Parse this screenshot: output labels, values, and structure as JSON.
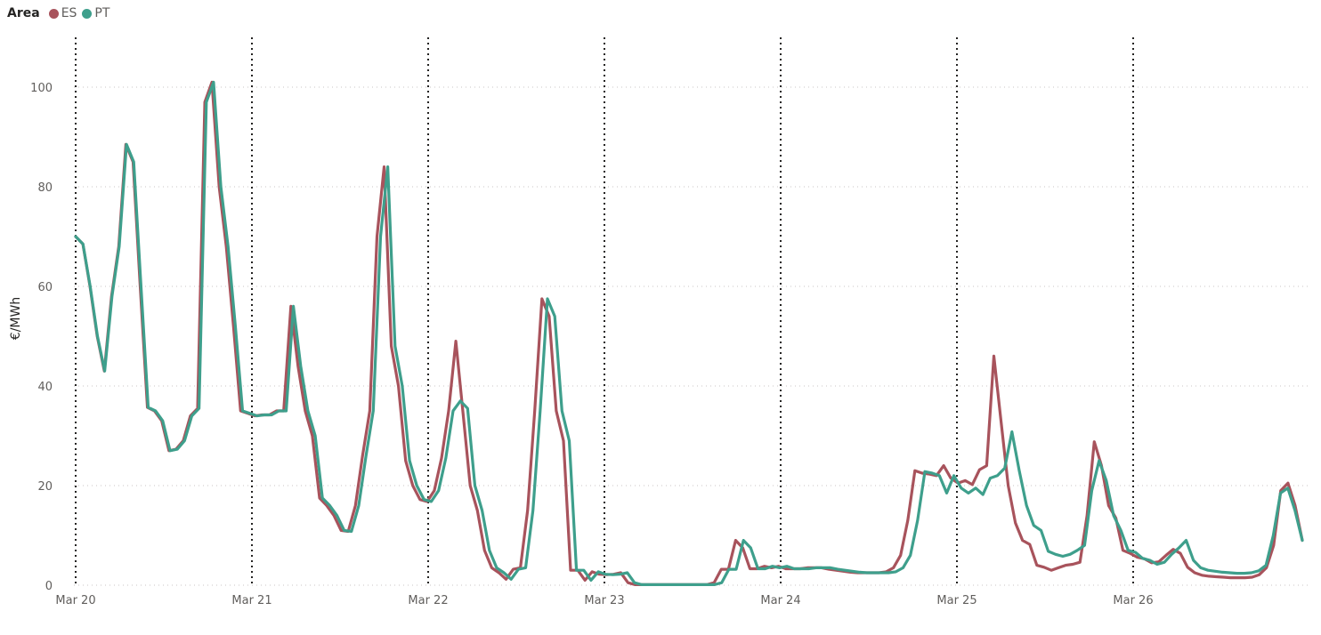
{
  "legend": {
    "title": "Area",
    "items": [
      {
        "label": "ES",
        "color": "#a8535c"
      },
      {
        "label": "PT",
        "color": "#3e9f8c"
      }
    ]
  },
  "chart_data": {
    "type": "line",
    "ylabel": "€/MWh",
    "ylim": [
      0,
      110
    ],
    "yticks": [
      0,
      20,
      40,
      60,
      80,
      100
    ],
    "xlim": [
      0,
      7
    ],
    "xticks": [
      {
        "pos": 0,
        "label": "Mar 20"
      },
      {
        "pos": 1,
        "label": "Mar 21"
      },
      {
        "pos": 2,
        "label": "Mar 22"
      },
      {
        "pos": 3,
        "label": "Mar 23"
      },
      {
        "pos": 4,
        "label": "Mar 24"
      },
      {
        "pos": 5,
        "label": "Mar 25"
      },
      {
        "pos": 6,
        "label": "Mar 26"
      }
    ],
    "grid": true,
    "legend_position": "top-left",
    "series": [
      {
        "name": "ES",
        "color": "#a8535c",
        "values": [
          70,
          68.5,
          60,
          50,
          43,
          58,
          68,
          88.5,
          85,
          60,
          35.7,
          35,
          33,
          27,
          27.3,
          29,
          34,
          35.5,
          97,
          101,
          80,
          68,
          52,
          35,
          34.5,
          34,
          34.2,
          34.2,
          35,
          35,
          56,
          44,
          35,
          30,
          17.5,
          16,
          14,
          11,
          10.8,
          16,
          26,
          35,
          70,
          84,
          48,
          40,
          25,
          20,
          17.2,
          16.8,
          19,
          25.5,
          35,
          49,
          34.5,
          20,
          15,
          7,
          3.5,
          2.5,
          1.2,
          3.2,
          3.5,
          15,
          35,
          57.5,
          54,
          35,
          29,
          3,
          3,
          1,
          2.7,
          2.2,
          2.1,
          2.2,
          2.5,
          0.5,
          0.1,
          0.1,
          0.1,
          0.1,
          0.1,
          0.1,
          0.1,
          0.1,
          0.1,
          0.1,
          0.1,
          0.5,
          3.2,
          3.2,
          9,
          7.5,
          3.3,
          3.3,
          3.8,
          3.5,
          3.8,
          3.3,
          3.3,
          3.3,
          3.5,
          3.5,
          3.5,
          3.2,
          3,
          2.8,
          2.6,
          2.5,
          2.5,
          2.5,
          2.5,
          2.7,
          3.5,
          6,
          13,
          23,
          22.5,
          22.3,
          22,
          24,
          21.5,
          20.5,
          21,
          20.2,
          23.2,
          24,
          46,
          33,
          20,
          12.5,
          9,
          8.2,
          4,
          3.6,
          3,
          3.5,
          4,
          4.2,
          4.6,
          14,
          28.8,
          24,
          16,
          13.5,
          7,
          6.4,
          5.6,
          5.3,
          4.5,
          4.7,
          6,
          7.2,
          6.4,
          3.6,
          2.5,
          2,
          1.8,
          1.7,
          1.6,
          1.5,
          1.5,
          1.5,
          1.6,
          2.1,
          3.5,
          8,
          19,
          20.5,
          16,
          9
        ]
      },
      {
        "name": "PT",
        "color": "#3e9f8c",
        "values": [
          70,
          68.5,
          60,
          50,
          43,
          58,
          68,
          88.5,
          85,
          60,
          35.7,
          35,
          33,
          27,
          27.3,
          29,
          34,
          35.5,
          97,
          101,
          80,
          68,
          52,
          35,
          34.5,
          34,
          34.2,
          34.2,
          35,
          35,
          56,
          44,
          35,
          30,
          17.5,
          16,
          14,
          11,
          10.8,
          16,
          26,
          35,
          70,
          84,
          48,
          40,
          25,
          20,
          17.2,
          16.8,
          19,
          25.5,
          35,
          37,
          35.5,
          20,
          15,
          7,
          3.5,
          2.5,
          1.2,
          3.2,
          3.5,
          15,
          35,
          57.5,
          54,
          35,
          29,
          3,
          3,
          1,
          2.7,
          2.2,
          2.1,
          2.2,
          2.5,
          0.5,
          0.1,
          0.1,
          0.1,
          0.1,
          0.1,
          0.1,
          0.1,
          0.1,
          0.1,
          0.1,
          0.1,
          0.5,
          3.2,
          3.2,
          9,
          7.5,
          3.3,
          3.3,
          3.8,
          3.5,
          3.8,
          3.3,
          3.3,
          3.3,
          3.5,
          3.5,
          3.5,
          3.2,
          3,
          2.8,
          2.6,
          2.5,
          2.5,
          2.5,
          2.5,
          2.7,
          3.5,
          6,
          13,
          22.8,
          22.5,
          22,
          18.5,
          22,
          19.5,
          18.5,
          19.5,
          18.2,
          21.5,
          22,
          23.5,
          30.8,
          23,
          16,
          12,
          11,
          6.8,
          6.2,
          5.8,
          6.2,
          7,
          8,
          19,
          25,
          21,
          14,
          11,
          7,
          6.6,
          5.4,
          5,
          4.2,
          4.6,
          6.2,
          7.5,
          9,
          5,
          3.5,
          3,
          2.8,
          2.6,
          2.5,
          2.4,
          2.4,
          2.5,
          2.9,
          4,
          10,
          18.5,
          19.5,
          15,
          9
        ]
      }
    ]
  }
}
